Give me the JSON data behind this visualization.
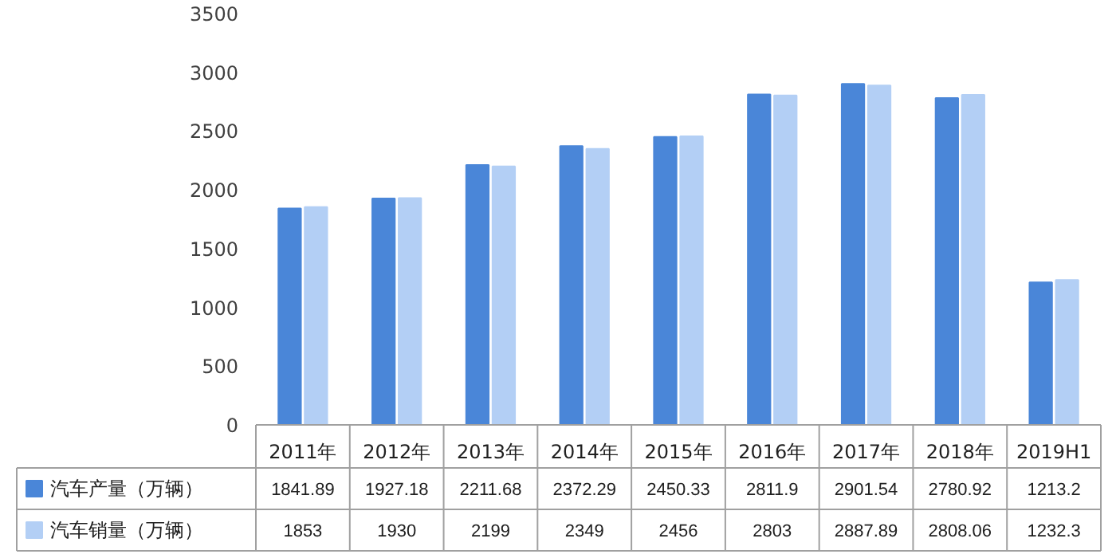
{
  "chart_data": {
    "type": "bar",
    "categories": [
      "2011年",
      "2012年",
      "2013年",
      "2014年",
      "2015年",
      "2016年",
      "2017年",
      "2018年",
      "2019H1"
    ],
    "series": [
      {
        "name": "汽车产量（万辆）",
        "color": "#4a86d8",
        "values": [
          1841.89,
          1927.18,
          2211.68,
          2372.29,
          2450.33,
          2811.9,
          2901.54,
          2780.92,
          1213.2
        ]
      },
      {
        "name": "汽车销量（万辆）",
        "color": "#b3cff5",
        "values": [
          1853,
          1930,
          2199,
          2349,
          2456,
          2803,
          2887.89,
          2808.06,
          1232.3
        ]
      }
    ],
    "ylim": [
      0,
      3500
    ],
    "yticks": [
      0,
      500,
      1000,
      1500,
      2000,
      2500,
      3000,
      3500
    ],
    "grid": false,
    "legend": "bottom",
    "data_labels": true
  }
}
